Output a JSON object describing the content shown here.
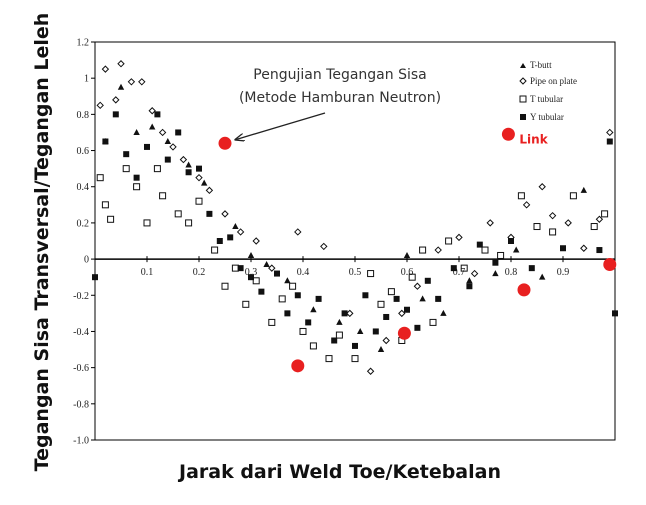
{
  "chart_data": {
    "type": "scatter",
    "title": "",
    "xlabel": "Jarak dari Weld Toe/Ketebalan",
    "ylabel": "Tegangan Sisa Transversal/Tegangan Leleh",
    "xlim": [
      0,
      1.0
    ],
    "ylim": [
      -1.0,
      1.2
    ],
    "x_ticks": [
      {
        "v": 0.1,
        "label": "0.1"
      },
      {
        "v": 0.2,
        "label": "0.2"
      },
      {
        "v": 0.3,
        "label": "0.3"
      },
      {
        "v": 0.4,
        "label": "0.4"
      },
      {
        "v": 0.5,
        "label": "0.5"
      },
      {
        "v": 0.6,
        "label": "0.6"
      },
      {
        "v": 0.7,
        "label": "0.7"
      },
      {
        "v": 0.8,
        "label": "0.8"
      },
      {
        "v": 0.9,
        "label": "0.9"
      }
    ],
    "y_ticks": [
      {
        "v": 1.2,
        "label": "1.2"
      },
      {
        "v": 1.0,
        "label": "1"
      },
      {
        "v": 0.8,
        "label": "0.8"
      },
      {
        "v": 0.6,
        "label": "0.6"
      },
      {
        "v": 0.4,
        "label": "0.4"
      },
      {
        "v": 0.2,
        "label": "0.2"
      },
      {
        "v": 0.0,
        "label": "0"
      },
      {
        "v": -0.2,
        "label": "-0.2"
      },
      {
        "v": -0.4,
        "label": "-0.4"
      },
      {
        "v": -0.6,
        "label": "-0.6"
      },
      {
        "v": -0.8,
        "label": "-0.8"
      },
      {
        "v": -1.0,
        "label": "-1.0"
      }
    ],
    "grid": false,
    "legend_position": "top-right",
    "series": [
      {
        "name": "T-butt",
        "marker": "triangle",
        "points": [
          [
            0.02,
            0.65
          ],
          [
            0.05,
            0.95
          ],
          [
            0.08,
            0.7
          ],
          [
            0.11,
            0.73
          ],
          [
            0.14,
            0.65
          ],
          [
            0.18,
            0.52
          ],
          [
            0.21,
            0.42
          ],
          [
            0.27,
            0.18
          ],
          [
            0.3,
            0.02
          ],
          [
            0.33,
            -0.03
          ],
          [
            0.37,
            -0.12
          ],
          [
            0.42,
            -0.28
          ],
          [
            0.47,
            -0.35
          ],
          [
            0.51,
            -0.4
          ],
          [
            0.55,
            -0.5
          ],
          [
            0.6,
            0.02
          ],
          [
            0.63,
            -0.22
          ],
          [
            0.67,
            -0.3
          ],
          [
            0.72,
            -0.12
          ],
          [
            0.77,
            -0.08
          ],
          [
            0.81,
            0.05
          ],
          [
            0.86,
            -0.1
          ],
          [
            0.94,
            0.38
          ]
        ]
      },
      {
        "name": "Pipe on plate",
        "marker": "diamond",
        "points": [
          [
            0.01,
            0.85
          ],
          [
            0.02,
            1.05
          ],
          [
            0.04,
            0.88
          ],
          [
            0.05,
            1.08
          ],
          [
            0.07,
            0.98
          ],
          [
            0.09,
            0.98
          ],
          [
            0.11,
            0.82
          ],
          [
            0.13,
            0.7
          ],
          [
            0.15,
            0.62
          ],
          [
            0.17,
            0.55
          ],
          [
            0.2,
            0.45
          ],
          [
            0.22,
            0.38
          ],
          [
            0.25,
            0.25
          ],
          [
            0.28,
            0.15
          ],
          [
            0.31,
            0.1
          ],
          [
            0.34,
            -0.05
          ],
          [
            0.39,
            0.15
          ],
          [
            0.44,
            0.07
          ],
          [
            0.49,
            -0.3
          ],
          [
            0.53,
            -0.62
          ],
          [
            0.56,
            -0.45
          ],
          [
            0.59,
            -0.3
          ],
          [
            0.62,
            -0.15
          ],
          [
            0.66,
            0.05
          ],
          [
            0.7,
            0.12
          ],
          [
            0.73,
            -0.08
          ],
          [
            0.76,
            0.2
          ],
          [
            0.8,
            0.12
          ],
          [
            0.83,
            0.3
          ],
          [
            0.86,
            0.4
          ],
          [
            0.88,
            0.24
          ],
          [
            0.91,
            0.2
          ],
          [
            0.94,
            0.06
          ],
          [
            0.97,
            0.22
          ],
          [
            0.99,
            0.7
          ]
        ]
      },
      {
        "name": "T tubular",
        "marker": "square-open",
        "points": [
          [
            0.01,
            0.45
          ],
          [
            0.02,
            0.3
          ],
          [
            0.03,
            0.22
          ],
          [
            0.06,
            0.5
          ],
          [
            0.08,
            0.4
          ],
          [
            0.1,
            0.2
          ],
          [
            0.12,
            0.5
          ],
          [
            0.13,
            0.35
          ],
          [
            0.16,
            0.25
          ],
          [
            0.18,
            0.2
          ],
          [
            0.2,
            0.32
          ],
          [
            0.23,
            0.05
          ],
          [
            0.25,
            -0.15
          ],
          [
            0.27,
            -0.05
          ],
          [
            0.29,
            -0.25
          ],
          [
            0.31,
            -0.12
          ],
          [
            0.34,
            -0.35
          ],
          [
            0.36,
            -0.22
          ],
          [
            0.38,
            -0.15
          ],
          [
            0.4,
            -0.4
          ],
          [
            0.42,
            -0.48
          ],
          [
            0.45,
            -0.55
          ],
          [
            0.47,
            -0.42
          ],
          [
            0.5,
            -0.55
          ],
          [
            0.53,
            -0.08
          ],
          [
            0.55,
            -0.25
          ],
          [
            0.57,
            -0.18
          ],
          [
            0.59,
            -0.45
          ],
          [
            0.61,
            -0.1
          ],
          [
            0.63,
            0.05
          ],
          [
            0.65,
            -0.35
          ],
          [
            0.68,
            0.1
          ],
          [
            0.71,
            -0.05
          ],
          [
            0.75,
            0.05
          ],
          [
            0.78,
            0.02
          ],
          [
            0.82,
            0.35
          ],
          [
            0.85,
            0.18
          ],
          [
            0.88,
            0.15
          ],
          [
            0.92,
            0.35
          ],
          [
            0.96,
            0.18
          ],
          [
            0.98,
            0.25
          ]
        ]
      },
      {
        "name": "Y tubular",
        "marker": "square-filled",
        "points": [
          [
            0.0,
            -0.1
          ],
          [
            0.02,
            0.65
          ],
          [
            0.04,
            0.8
          ],
          [
            0.06,
            0.58
          ],
          [
            0.08,
            0.45
          ],
          [
            0.1,
            0.62
          ],
          [
            0.12,
            0.8
          ],
          [
            0.14,
            0.55
          ],
          [
            0.16,
            0.7
          ],
          [
            0.18,
            0.48
          ],
          [
            0.2,
            0.5
          ],
          [
            0.22,
            0.25
          ],
          [
            0.24,
            0.1
          ],
          [
            0.26,
            0.12
          ],
          [
            0.28,
            -0.05
          ],
          [
            0.3,
            -0.1
          ],
          [
            0.32,
            -0.18
          ],
          [
            0.35,
            -0.08
          ],
          [
            0.37,
            -0.3
          ],
          [
            0.39,
            -0.2
          ],
          [
            0.41,
            -0.35
          ],
          [
            0.43,
            -0.22
          ],
          [
            0.46,
            -0.45
          ],
          [
            0.48,
            -0.3
          ],
          [
            0.5,
            -0.48
          ],
          [
            0.52,
            -0.2
          ],
          [
            0.54,
            -0.4
          ],
          [
            0.56,
            -0.32
          ],
          [
            0.58,
            -0.22
          ],
          [
            0.6,
            -0.28
          ],
          [
            0.62,
            -0.38
          ],
          [
            0.64,
            -0.12
          ],
          [
            0.66,
            -0.22
          ],
          [
            0.69,
            -0.05
          ],
          [
            0.72,
            -0.15
          ],
          [
            0.74,
            0.08
          ],
          [
            0.77,
            -0.02
          ],
          [
            0.8,
            0.1
          ],
          [
            0.84,
            -0.05
          ],
          [
            0.9,
            0.06
          ],
          [
            0.97,
            0.05
          ],
          [
            0.99,
            0.65
          ],
          [
            1.0,
            -0.3
          ]
        ]
      },
      {
        "name": "Link",
        "marker": "circle-red",
        "points": [
          [
            0.25,
            0.64
          ],
          [
            0.39,
            -0.59
          ],
          [
            0.595,
            -0.41
          ],
          [
            0.795,
            0.69
          ],
          [
            0.825,
            -0.17
          ],
          [
            0.99,
            -0.03
          ]
        ]
      }
    ],
    "annotation": {
      "line1": "Pengujian Tegangan Sisa",
      "line2": "(Metode Hamburan Neutron)",
      "points_to": [
        0.27,
        0.66
      ]
    },
    "link_label": "Link",
    "colors": {
      "link": "#e82020",
      "markers": "#111111",
      "axis": "#000000",
      "annotation_text": "#333333"
    }
  }
}
